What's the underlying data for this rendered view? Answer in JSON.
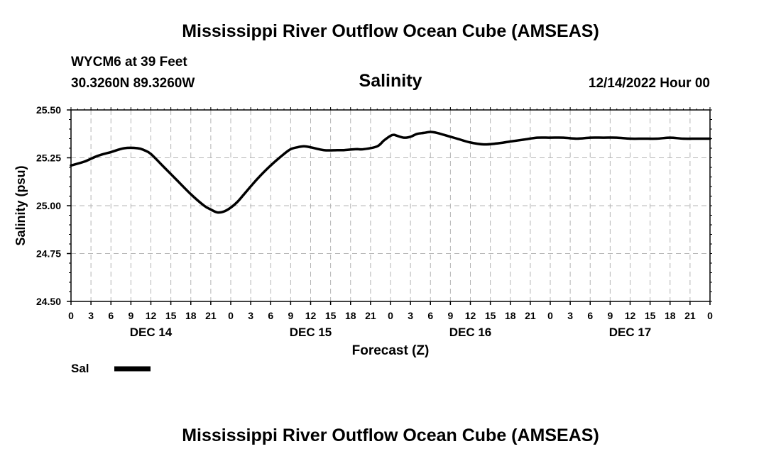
{
  "page": {
    "title_top": "Mississippi River Outflow Ocean Cube (AMSEAS)",
    "title_bottom": "Mississippi River Outflow Ocean Cube (AMSEAS)",
    "station": "WYCM6 at 39 Feet",
    "coords": "30.3260N  89.3260W",
    "datetime": "12/14/2022 Hour 00"
  },
  "colors": {
    "line": "#000000",
    "grid": "#b4b4b4",
    "frame": "#000000"
  },
  "chart_data": {
    "type": "line",
    "title": "Salinity",
    "xlabel": "Forecast (Z)",
    "ylabel": "Salinity (psu)",
    "ylim": [
      24.5,
      25.5
    ],
    "xlim": [
      0,
      96
    ],
    "grid": true,
    "y_ticks": [
      "24.50",
      "24.75",
      "25.00",
      "25.25",
      "25.50"
    ],
    "y_tick_values": [
      24.5,
      24.75,
      25.0,
      25.25,
      25.5
    ],
    "x_ticks": [
      "0",
      "3",
      "6",
      "9",
      "12",
      "15",
      "18",
      "21",
      "0",
      "3",
      "6",
      "9",
      "12",
      "15",
      "18",
      "21",
      "0",
      "3",
      "6",
      "9",
      "12",
      "15",
      "18",
      "21",
      "0",
      "3",
      "6",
      "9",
      "12",
      "15",
      "18",
      "21",
      "0"
    ],
    "day_labels": [
      {
        "label": "DEC 14",
        "hour": 12
      },
      {
        "label": "DEC 15",
        "hour": 36
      },
      {
        "label": "DEC 16",
        "hour": 60
      },
      {
        "label": "DEC 17",
        "hour": 84
      }
    ],
    "legend": [
      {
        "name": "Sal",
        "color": "#000000"
      }
    ],
    "series": [
      {
        "name": "Sal",
        "x": [
          0,
          2,
          4,
          6,
          8,
          10,
          11,
          12,
          14,
          16,
          18,
          20,
          21,
          22,
          23,
          24,
          25,
          26,
          28,
          30,
          32,
          33,
          34,
          35,
          36,
          38,
          40,
          41,
          42,
          43,
          44,
          46,
          47,
          48,
          48.5,
          49,
          50,
          51,
          52,
          53,
          54,
          55,
          56,
          58,
          60,
          62,
          64,
          66,
          68,
          70,
          72,
          74,
          76,
          78,
          80,
          82,
          84,
          86,
          88,
          90,
          92,
          94,
          96
        ],
        "y": [
          25.21,
          25.23,
          25.26,
          25.28,
          25.3,
          25.3,
          25.29,
          25.27,
          25.2,
          25.13,
          25.06,
          25.0,
          24.98,
          24.965,
          24.97,
          24.99,
          25.02,
          25.06,
          25.14,
          25.21,
          25.27,
          25.295,
          25.305,
          25.31,
          25.305,
          25.29,
          25.29,
          25.29,
          25.293,
          25.295,
          25.295,
          25.31,
          25.34,
          25.365,
          25.37,
          25.365,
          25.355,
          25.36,
          25.375,
          25.38,
          25.385,
          25.38,
          25.37,
          25.35,
          25.33,
          25.32,
          25.325,
          25.335,
          25.345,
          25.355,
          25.355,
          25.355,
          25.35,
          25.355,
          25.355,
          25.355,
          25.35,
          25.35,
          25.35,
          25.355,
          25.35,
          25.35,
          25.35
        ]
      }
    ]
  }
}
